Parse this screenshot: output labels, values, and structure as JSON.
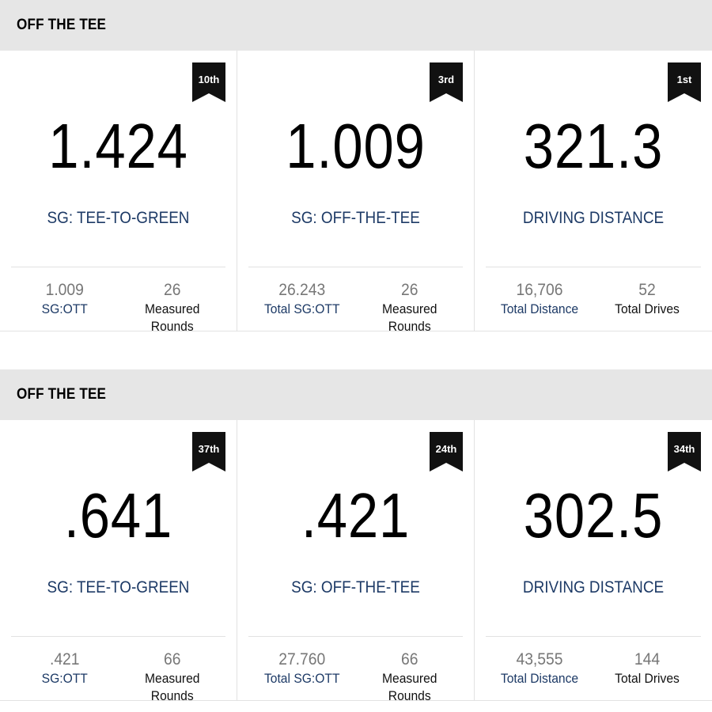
{
  "sections": [
    {
      "title": "OFF THE TEE",
      "cards": [
        {
          "rank": "10th",
          "value": "1.424",
          "label": "SG: TEE-TO-GREEN",
          "sub": [
            {
              "value": "1.009",
              "label": "SG:OTT"
            },
            {
              "value": "26",
              "label": "Measured Rounds"
            }
          ]
        },
        {
          "rank": "3rd",
          "value": "1.009",
          "label": "SG: OFF-THE-TEE",
          "sub": [
            {
              "value": "26.243",
              "label": "Total SG:OTT"
            },
            {
              "value": "26",
              "label": "Measured Rounds"
            }
          ]
        },
        {
          "rank": "1st",
          "value": "321.3",
          "label": "DRIVING DISTANCE",
          "sub": [
            {
              "value": "16,706",
              "label": "Total Distance"
            },
            {
              "value": "52",
              "label": "Total Drives"
            }
          ]
        }
      ]
    },
    {
      "title": "OFF THE TEE",
      "cards": [
        {
          "rank": "37th",
          "value": ".641",
          "label": "SG: TEE-TO-GREEN",
          "sub": [
            {
              "value": ".421",
              "label": "SG:OTT"
            },
            {
              "value": "66",
              "label": "Measured Rounds"
            }
          ]
        },
        {
          "rank": "24th",
          "value": ".421",
          "label": "SG: OFF-THE-TEE",
          "sub": [
            {
              "value": "27.760",
              "label": "Total SG:OTT"
            },
            {
              "value": "66",
              "label": "Measured Rounds"
            }
          ]
        },
        {
          "rank": "34th",
          "value": "302.5",
          "label": "DRIVING DISTANCE",
          "sub": [
            {
              "value": "43,555",
              "label": "Total Distance"
            },
            {
              "value": "144",
              "label": "Total Drives"
            }
          ]
        }
      ]
    }
  ],
  "colors": {
    "header_bg": "#e6e6e6",
    "label_blue": "#1d3a66",
    "badge_bg": "#111111",
    "sub_number": "#777777"
  }
}
